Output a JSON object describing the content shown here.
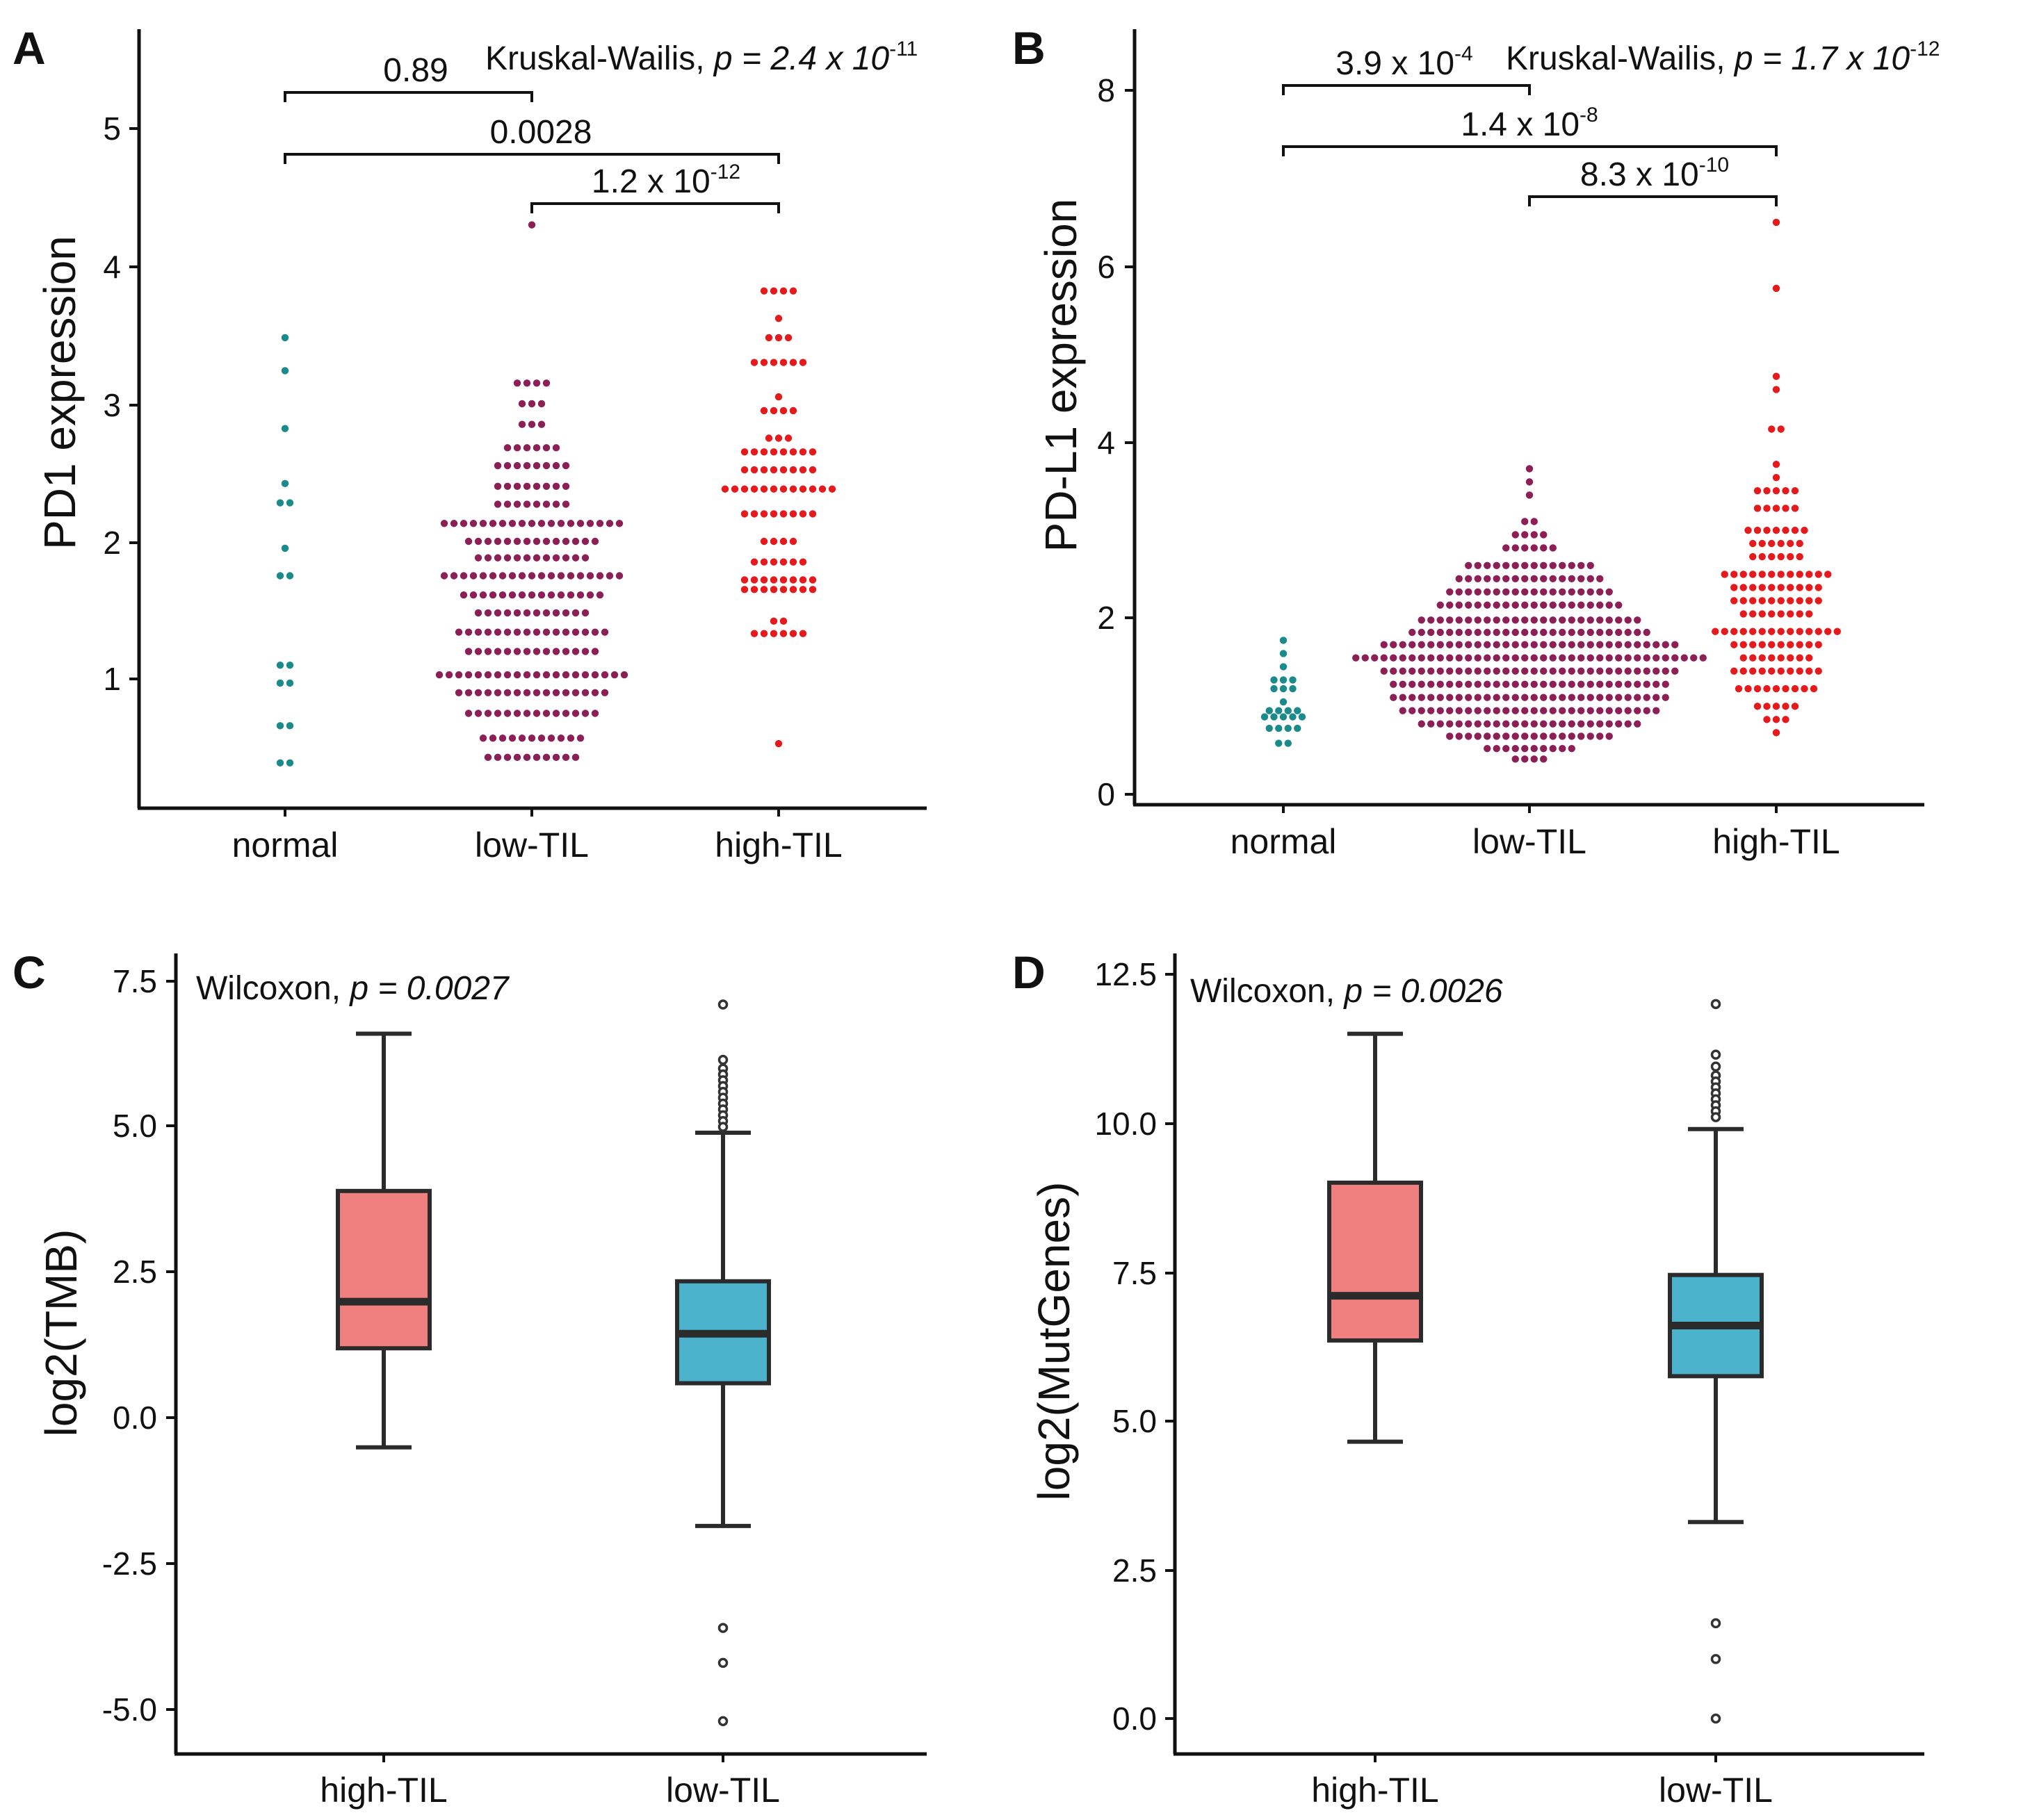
{
  "figure": {
    "panels": [
      "A",
      "B",
      "C",
      "D"
    ]
  },
  "chart_data": [
    {
      "panel": "A",
      "type": "scatter",
      "subtype": "dot-plot",
      "ylabel": "PD1 expression",
      "categories": [
        "normal",
        "low-TIL",
        "high-TIL"
      ],
      "ylim": [
        0.1,
        5.6
      ],
      "yticks": [
        "1",
        "2",
        "3",
        "4",
        "5"
      ],
      "test": {
        "name": "Kruskal-Wailis",
        "p_prefix": "p = 2.4 x 10",
        "p_exp": "-11"
      },
      "comparisons": [
        {
          "from": "normal",
          "to": "low-TIL",
          "mant": "0.89",
          "exp": ""
        },
        {
          "from": "normal",
          "to": "high-TIL",
          "mant": "0.0028",
          "exp": ""
        },
        {
          "from": "low-TIL",
          "to": "high-TIL",
          "mant": "1.2 x 10",
          "exp": "-12"
        }
      ],
      "series": [
        {
          "name": "normal",
          "color": "#1a8a8a",
          "rows": [
            {
              "y": 3.48,
              "n": 1
            },
            {
              "y": 3.24,
              "n": 1
            },
            {
              "y": 2.82,
              "n": 1
            },
            {
              "y": 2.42,
              "n": 1
            },
            {
              "y": 2.28,
              "n": 2
            },
            {
              "y": 1.95,
              "n": 1
            },
            {
              "y": 1.75,
              "n": 2
            },
            {
              "y": 1.1,
              "n": 2
            },
            {
              "y": 0.97,
              "n": 2
            },
            {
              "y": 0.66,
              "n": 2
            },
            {
              "y": 0.39,
              "n": 2
            }
          ]
        },
        {
          "name": "low-TIL",
          "color": "#8c1f56",
          "rows": [
            {
              "y": 4.3,
              "n": 1
            },
            {
              "y": 3.15,
              "n": 4
            },
            {
              "y": 3.0,
              "n": 3
            },
            {
              "y": 2.85,
              "n": 3
            },
            {
              "y": 2.68,
              "n": 6
            },
            {
              "y": 2.55,
              "n": 8
            },
            {
              "y": 2.4,
              "n": 8
            },
            {
              "y": 2.27,
              "n": 8
            },
            {
              "y": 2.13,
              "n": 19
            },
            {
              "y": 2.0,
              "n": 14
            },
            {
              "y": 1.88,
              "n": 12
            },
            {
              "y": 1.75,
              "n": 19
            },
            {
              "y": 1.61,
              "n": 15
            },
            {
              "y": 1.48,
              "n": 12
            },
            {
              "y": 1.34,
              "n": 16
            },
            {
              "y": 1.2,
              "n": 14
            },
            {
              "y": 1.03,
              "n": 20
            },
            {
              "y": 0.9,
              "n": 16
            },
            {
              "y": 0.75,
              "n": 14
            },
            {
              "y": 0.57,
              "n": 11
            },
            {
              "y": 0.43,
              "n": 10
            }
          ]
        },
        {
          "name": "high-TIL",
          "color": "#e41a1c",
          "rows": [
            {
              "y": 3.82,
              "n": 4
            },
            {
              "y": 3.62,
              "n": 1
            },
            {
              "y": 3.48,
              "n": 3
            },
            {
              "y": 3.3,
              "n": 6
            },
            {
              "y": 3.05,
              "n": 1
            },
            {
              "y": 2.95,
              "n": 4
            },
            {
              "y": 2.75,
              "n": 3
            },
            {
              "y": 2.65,
              "n": 8
            },
            {
              "y": 2.52,
              "n": 8
            },
            {
              "y": 2.38,
              "n": 12
            },
            {
              "y": 2.2,
              "n": 8
            },
            {
              "y": 2.0,
              "n": 4
            },
            {
              "y": 1.85,
              "n": 6
            },
            {
              "y": 1.72,
              "n": 8
            },
            {
              "y": 1.65,
              "n": 8
            },
            {
              "y": 1.42,
              "n": 2
            },
            {
              "y": 1.33,
              "n": 6
            },
            {
              "y": 0.53,
              "n": 1
            }
          ]
        }
      ]
    },
    {
      "panel": "B",
      "type": "scatter",
      "subtype": "dot-plot",
      "ylabel": "PD-L1 expression",
      "categories": [
        "normal",
        "low-TIL",
        "high-TIL"
      ],
      "ylim": [
        -0.1,
        8.6
      ],
      "yticks": [
        "0",
        "2",
        "4",
        "6",
        "8"
      ],
      "test": {
        "name": "Kruskal-Wailis",
        "p_prefix": "p = 1.7 x 10",
        "p_exp": "-12"
      },
      "comparisons": [
        {
          "from": "normal",
          "to": "low-TIL",
          "mant": "3.9 x 10",
          "exp": "-4"
        },
        {
          "from": "normal",
          "to": "high-TIL",
          "mant": "1.4 x 10",
          "exp": "-8"
        },
        {
          "from": "low-TIL",
          "to": "high-TIL",
          "mant": "8.3 x 10",
          "exp": "-10"
        }
      ],
      "series": [
        {
          "name": "normal",
          "color": "#1a8a8a",
          "rows": [
            {
              "y": 1.75,
              "n": 1
            },
            {
              "y": 1.6,
              "n": 1
            },
            {
              "y": 1.45,
              "n": 1
            },
            {
              "y": 1.3,
              "n": 3
            },
            {
              "y": 1.2,
              "n": 3
            },
            {
              "y": 1.05,
              "n": 1
            },
            {
              "y": 0.95,
              "n": 4
            },
            {
              "y": 0.88,
              "n": 5
            },
            {
              "y": 0.75,
              "n": 4
            },
            {
              "y": 0.58,
              "n": 2
            }
          ]
        },
        {
          "name": "low-TIL",
          "color": "#8c1f56",
          "rows": [
            {
              "y": 3.7,
              "n": 1
            },
            {
              "y": 3.55,
              "n": 1
            },
            {
              "y": 3.4,
              "n": 1
            },
            {
              "y": 3.1,
              "n": 2
            },
            {
              "y": 2.95,
              "n": 4
            },
            {
              "y": 2.8,
              "n": 6
            },
            {
              "y": 2.6,
              "n": 14
            },
            {
              "y": 2.45,
              "n": 16
            },
            {
              "y": 2.3,
              "n": 18
            },
            {
              "y": 2.15,
              "n": 20
            },
            {
              "y": 1.98,
              "n": 24
            },
            {
              "y": 1.84,
              "n": 26
            },
            {
              "y": 1.7,
              "n": 32
            },
            {
              "y": 1.55,
              "n": 38
            },
            {
              "y": 1.4,
              "n": 32
            },
            {
              "y": 1.25,
              "n": 30
            },
            {
              "y": 1.1,
              "n": 30
            },
            {
              "y": 0.95,
              "n": 28
            },
            {
              "y": 0.8,
              "n": 24
            },
            {
              "y": 0.66,
              "n": 18
            },
            {
              "y": 0.52,
              "n": 10
            },
            {
              "y": 0.4,
              "n": 4
            }
          ]
        },
        {
          "name": "high-TIL",
          "color": "#e41a1c",
          "rows": [
            {
              "y": 6.5,
              "n": 1
            },
            {
              "y": 5.75,
              "n": 1
            },
            {
              "y": 4.75,
              "n": 1
            },
            {
              "y": 4.6,
              "n": 1
            },
            {
              "y": 4.15,
              "n": 2
            },
            {
              "y": 3.75,
              "n": 1
            },
            {
              "y": 3.6,
              "n": 1
            },
            {
              "y": 3.45,
              "n": 5
            },
            {
              "y": 3.25,
              "n": 5
            },
            {
              "y": 3.0,
              "n": 7
            },
            {
              "y": 2.85,
              "n": 6
            },
            {
              "y": 2.7,
              "n": 6
            },
            {
              "y": 2.5,
              "n": 12
            },
            {
              "y": 2.35,
              "n": 10
            },
            {
              "y": 2.2,
              "n": 10
            },
            {
              "y": 2.05,
              "n": 8
            },
            {
              "y": 1.85,
              "n": 14
            },
            {
              "y": 1.7,
              "n": 10
            },
            {
              "y": 1.55,
              "n": 8
            },
            {
              "y": 1.4,
              "n": 10
            },
            {
              "y": 1.2,
              "n": 9
            },
            {
              "y": 1.0,
              "n": 5
            },
            {
              "y": 0.85,
              "n": 3
            },
            {
              "y": 0.7,
              "n": 1
            }
          ]
        }
      ]
    },
    {
      "panel": "C",
      "type": "box",
      "ylabel": "log2(TMB)",
      "categories": [
        "high-TIL",
        "low-TIL"
      ],
      "ylim": [
        -5.7,
        7.9
      ],
      "yticks": [
        "7.5",
        "5.0",
        "2.5",
        "0.0",
        "-2.5",
        "-5.0"
      ],
      "test": {
        "name": "Wilcoxon",
        "p_text": "p = 0.0027"
      },
      "series": [
        {
          "name": "high-TIL",
          "color": "#f08080",
          "lower_whisker": -0.5,
          "q1": 1.2,
          "median": 2.0,
          "q3": 3.9,
          "upper_whisker": 6.6,
          "outliers": []
        },
        {
          "name": "low-TIL",
          "color": "#4bb2cc",
          "lower_whisker": -1.85,
          "q1": 0.6,
          "median": 1.45,
          "q3": 2.35,
          "upper_whisker": 4.9,
          "outliers": [
            7.1,
            6.15,
            6.0,
            5.9,
            5.8,
            5.7,
            5.6,
            5.5,
            5.4,
            5.3,
            5.2,
            5.1,
            5.0,
            -3.6,
            -4.2,
            -5.2
          ]
        }
      ]
    },
    {
      "panel": "D",
      "type": "box",
      "ylabel": "log2(MutGenes)",
      "categories": [
        "high-TIL",
        "low-TIL"
      ],
      "ylim": [
        -0.6,
        12.9
      ],
      "yticks": [
        "12.5",
        "10.0",
        "7.5",
        "5.0",
        "2.5",
        "0.0"
      ],
      "test": {
        "name": "Wilcoxon",
        "p_text": "p = 0.0026"
      },
      "series": [
        {
          "name": "high-TIL",
          "color": "#f08080",
          "lower_whisker": 4.65,
          "q1": 6.35,
          "median": 7.1,
          "q3": 9.0,
          "upper_whisker": 11.5,
          "outliers": []
        },
        {
          "name": "low-TIL",
          "color": "#4bb2cc",
          "lower_whisker": 3.3,
          "q1": 5.75,
          "median": 6.6,
          "q3": 7.45,
          "upper_whisker": 9.9,
          "outliers": [
            12.0,
            11.15,
            10.95,
            10.8,
            10.7,
            10.6,
            10.5,
            10.4,
            10.3,
            10.2,
            10.1,
            1.6,
            1.0,
            0.0
          ]
        }
      ]
    }
  ]
}
